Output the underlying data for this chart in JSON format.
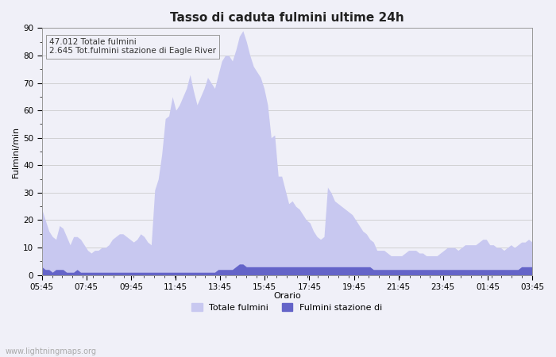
{
  "title": "Tasso di caduta fulmini ultime 24h",
  "xlabel": "Orario",
  "ylabel": "Fulmini/min",
  "ylim": [
    0,
    90
  ],
  "yticks": [
    0,
    10,
    20,
    30,
    40,
    50,
    60,
    70,
    80,
    90
  ],
  "annotation_line1": "47.012 Totale fulmini",
  "annotation_line2": "2.645 Tot.fulmini stazione di Eagle River",
  "legend_label1": "Totale fulmini",
  "legend_label2": "Fulmini stazione di",
  "color_total": "#c8c8f0",
  "color_station": "#6464c8",
  "background_color": "#f0f0f8",
  "watermark": "www.lightningmaps.org",
  "x_labels": [
    "05:45",
    "07:45",
    "09:45",
    "11:45",
    "13:45",
    "15:45",
    "17:45",
    "19:45",
    "21:45",
    "23:45",
    "01:45",
    "03:45"
  ],
  "total_values": [
    24,
    20,
    16,
    14,
    13,
    18,
    17,
    14,
    11,
    14,
    14,
    13,
    11,
    9,
    8,
    9,
    9,
    10,
    10,
    11,
    13,
    14,
    15,
    15,
    14,
    13,
    12,
    13,
    15,
    14,
    12,
    11,
    31,
    35,
    44,
    57,
    58,
    65,
    60,
    62,
    65,
    68,
    73,
    67,
    62,
    65,
    68,
    72,
    70,
    68,
    73,
    78,
    80,
    80,
    78,
    82,
    87,
    89,
    85,
    80,
    76,
    74,
    72,
    68,
    62,
    50,
    51,
    36,
    36,
    31,
    26,
    27,
    25,
    24,
    22,
    20,
    19,
    16,
    14,
    13,
    14,
    32,
    30,
    27,
    26,
    25,
    24,
    23,
    22,
    20,
    18,
    16,
    15,
    13,
    12,
    9,
    9,
    9,
    8,
    7,
    7,
    7,
    7,
    8,
    9,
    9,
    9,
    8,
    8,
    7,
    7,
    7,
    7,
    8,
    9,
    10,
    10,
    10,
    9,
    10,
    11,
    11,
    11,
    11,
    12,
    13,
    13,
    11,
    11,
    10,
    10,
    9,
    10,
    11,
    10,
    11,
    12,
    12,
    13,
    12,
    12,
    12,
    13
  ],
  "station_values": [
    3,
    2,
    2,
    1,
    2,
    2,
    2,
    1,
    1,
    1,
    2,
    1,
    1,
    1,
    1,
    1,
    1,
    1,
    1,
    1,
    1,
    1,
    1,
    1,
    1,
    1,
    1,
    1,
    1,
    1,
    1,
    1,
    1,
    1,
    1,
    1,
    1,
    1,
    1,
    1,
    1,
    1,
    1,
    1,
    1,
    1,
    1,
    1,
    1,
    1,
    2,
    2,
    2,
    2,
    2,
    3,
    4,
    4,
    3,
    3,
    3,
    3,
    3,
    3,
    3,
    3,
    3,
    3,
    3,
    3,
    3,
    3,
    3,
    3,
    3,
    3,
    3,
    3,
    3,
    3,
    3,
    3,
    3,
    3,
    3,
    3,
    3,
    3,
    3,
    3,
    3,
    3,
    3,
    3,
    2,
    2,
    2,
    2,
    2,
    2,
    2,
    2,
    2,
    2,
    2,
    2,
    2,
    2,
    2,
    2,
    2,
    2,
    2,
    2,
    2,
    2,
    2,
    2,
    2,
    2,
    2,
    2,
    2,
    2,
    2,
    2,
    2,
    2,
    2,
    2,
    2,
    2,
    2,
    2,
    2,
    2,
    3,
    3,
    3,
    3
  ]
}
